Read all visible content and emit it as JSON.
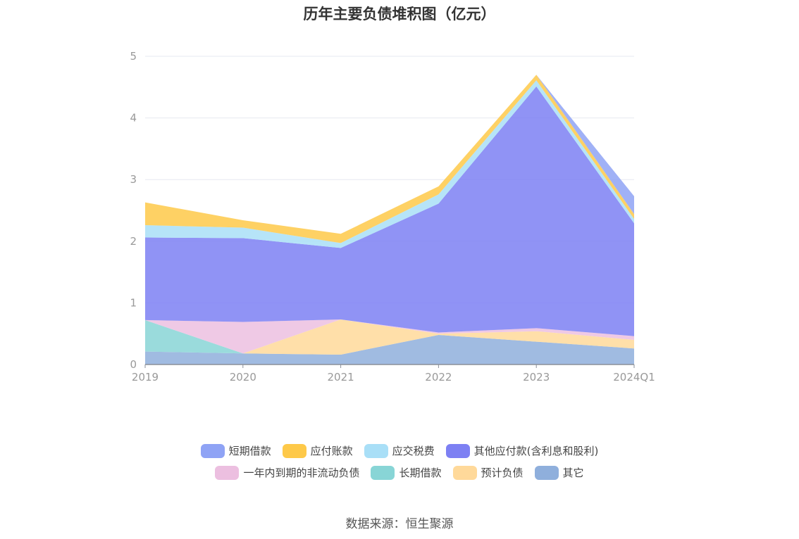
{
  "chart_data": {
    "type": "area",
    "stacked": true,
    "title": "历年主要负债堆积图（亿元）",
    "x": [
      "2019",
      "2020",
      "2021",
      "2022",
      "2023",
      "2024Q1"
    ],
    "ylim": [
      0,
      5
    ],
    "yticks": [
      0,
      1,
      2,
      3,
      4,
      5
    ],
    "grid": true,
    "legend_position": "bottom",
    "series": [
      {
        "name": "其它",
        "color": "#8fafdc",
        "values": [
          0.21,
          0.18,
          0.16,
          0.48,
          0.37,
          0.26
        ]
      },
      {
        "name": "预计负债",
        "color": "#ffd99a",
        "values": [
          0,
          0,
          0.57,
          0.02,
          0.17,
          0.14
        ]
      },
      {
        "name": "长期借款",
        "color": "#88d5d6",
        "values": [
          0.51,
          0,
          0,
          0,
          0,
          0
        ]
      },
      {
        "name": "一年内到期的非流动负债",
        "color": "#ecbfe0",
        "values": [
          0,
          0.51,
          0,
          0.02,
          0.05,
          0.06
        ]
      },
      {
        "name": "其他应付款(含利息和股利)",
        "color": "#7d80f3",
        "values": [
          1.34,
          1.36,
          1.16,
          2.09,
          3.92,
          1.83
        ]
      },
      {
        "name": "应交税费",
        "color": "#a9dff7",
        "values": [
          0.2,
          0.17,
          0.08,
          0.15,
          0.1,
          0.07
        ]
      },
      {
        "name": "应付账款",
        "color": "#fec949",
        "values": [
          0.37,
          0.12,
          0.15,
          0.13,
          0.09,
          0.08
        ]
      },
      {
        "name": "短期借款",
        "color": "#8fa3f5",
        "values": [
          0,
          0,
          0,
          0,
          0,
          0.29
        ]
      }
    ],
    "legend_order": [
      "短期借款",
      "应付账款",
      "应交税费",
      "其他应付款(含利息和股利)",
      "一年内到期的非流动负债",
      "长期借款",
      "预计负债",
      "其它"
    ]
  },
  "source_text": "数据来源：恒生聚源"
}
